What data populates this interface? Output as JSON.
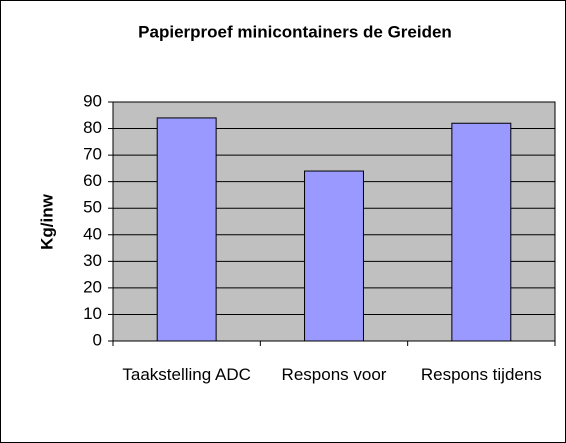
{
  "chart_data": {
    "type": "bar",
    "title": "Papierproef minicontainers de Greiden",
    "y_label": "Kg/inw",
    "categories": [
      "Taakstelling ADC",
      "Respons voor",
      "Respons tijdens"
    ],
    "values": [
      84,
      64,
      82
    ],
    "color": "#9999ff",
    "ylim": [
      0,
      90
    ],
    "yticks": [
      0,
      10,
      20,
      30,
      40,
      50,
      60,
      70,
      80,
      90
    ],
    "grid": true
  }
}
